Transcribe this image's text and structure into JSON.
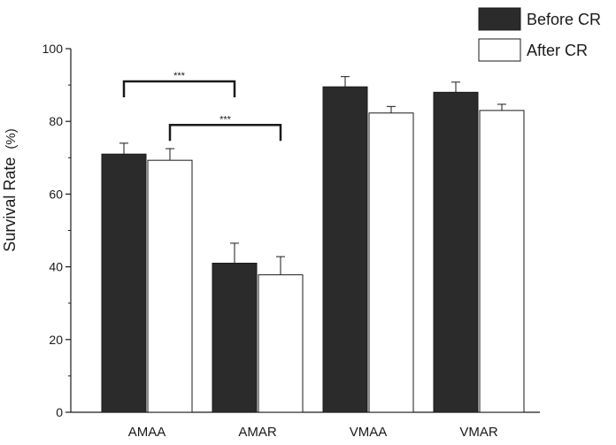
{
  "chart_data": {
    "type": "bar",
    "categories": [
      "AMAA",
      "AMAR",
      "VMAA",
      "VMAR"
    ],
    "series": [
      {
        "name": "Before CR",
        "color": "#2b2b2b",
        "values": [
          71,
          41,
          89.5,
          88
        ],
        "errors": [
          3,
          5.5,
          2.8,
          2.8
        ]
      },
      {
        "name": "After CR",
        "color": "#ffffff",
        "values": [
          69.3,
          37.8,
          82.3,
          83
        ],
        "errors": [
          3.2,
          5,
          1.8,
          1.7
        ]
      }
    ],
    "title": "",
    "xlabel": "",
    "ylabel": "Survival Rate",
    "ylabel_unit": "(%)",
    "ylim": [
      0,
      100
    ],
    "yticks": [
      "0",
      "20",
      "40",
      "60",
      "80",
      "100"
    ],
    "legend_position": "top-right",
    "grid": false,
    "significance": [
      {
        "label": "***",
        "from": "AMAA Before CR",
        "to": "AMAR Before CR",
        "level": 91
      },
      {
        "label": "***",
        "from": "AMAA After CR",
        "to": "AMAR After CR",
        "level": 79
      }
    ]
  }
}
